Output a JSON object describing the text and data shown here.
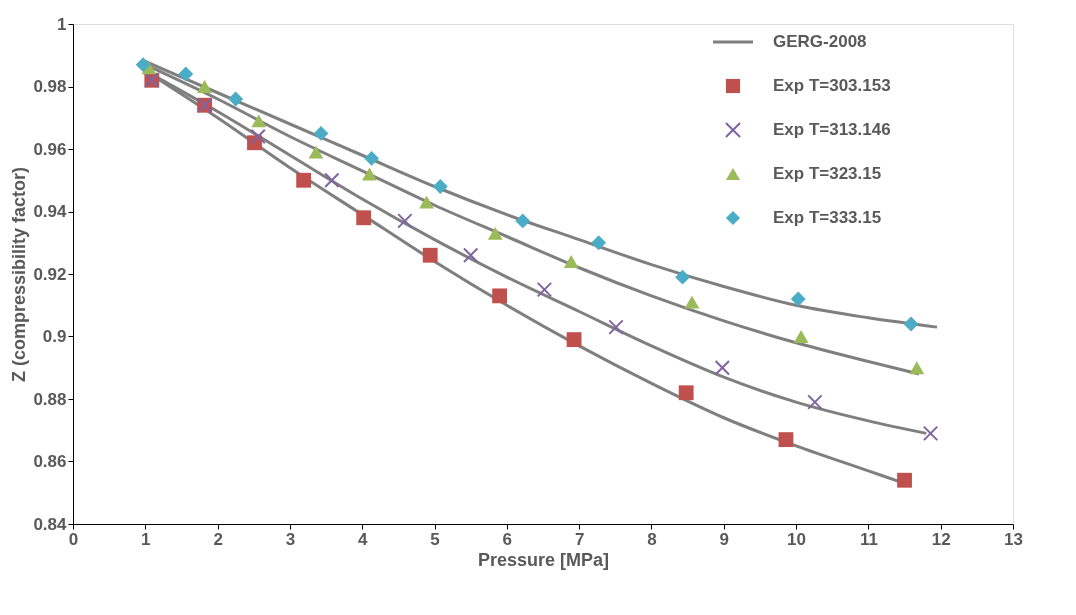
{
  "chart_data": {
    "type": "scatter",
    "xlabel": "Pressure [MPa]",
    "ylabel": "Z (compressibility factor)",
    "xlim": [
      0,
      13
    ],
    "xticks": [
      0,
      1,
      2,
      3,
      4,
      5,
      6,
      7,
      8,
      9,
      10,
      11,
      12,
      13
    ],
    "ylim": [
      0.84,
      1
    ],
    "yticks": [
      0.84,
      0.86,
      0.88,
      0.9,
      0.92,
      0.94,
      0.96,
      0.98,
      1
    ],
    "grid": false,
    "legend": "top right",
    "series": [
      {
        "type": "line",
        "name": "GERG-2008",
        "color": "#7f7f7f",
        "marker": "none",
        "line_style": "solid",
        "x": [
          1,
          2,
          3,
          4,
          5,
          6,
          7,
          8,
          9,
          10,
          11,
          11.5
        ],
        "values": [
          0.985,
          0.97,
          0.954,
          0.939,
          0.924,
          0.91,
          0.897,
          0.885,
          0.874,
          0.865,
          0.857,
          0.853
        ]
      },
      {
        "type": "line",
        "color": "#7f7f7f",
        "marker": "none",
        "line_style": "solid",
        "x": [
          1,
          2,
          3,
          4,
          5,
          6,
          7,
          8,
          9,
          10,
          11,
          11.8
        ],
        "values": [
          0.985,
          0.972,
          0.958,
          0.944,
          0.931,
          0.919,
          0.908,
          0.897,
          0.887,
          0.879,
          0.873,
          0.869
        ]
      },
      {
        "type": "line",
        "color": "#7f7f7f",
        "marker": "none",
        "line_style": "solid",
        "x": [
          1,
          2,
          3,
          4,
          5,
          6,
          7,
          8,
          9,
          10,
          11,
          11.7
        ],
        "values": [
          0.987,
          0.976,
          0.964,
          0.953,
          0.942,
          0.932,
          0.922,
          0.913,
          0.905,
          0.898,
          0.892,
          0.888
        ]
      },
      {
        "type": "line",
        "color": "#7f7f7f",
        "marker": "none",
        "line_style": "solid",
        "x": [
          1,
          2,
          3,
          4,
          5,
          6,
          7,
          8,
          9,
          10,
          11,
          11.95
        ],
        "values": [
          0.988,
          0.978,
          0.968,
          0.958,
          0.948,
          0.939,
          0.931,
          0.923,
          0.916,
          0.91,
          0.906,
          0.903
        ]
      },
      {
        "type": "scatter",
        "name": "Exp T=303.153",
        "color": "#c0504d",
        "marker": "square",
        "x": [
          1.09,
          1.82,
          2.51,
          3.19,
          4.02,
          4.94,
          5.9,
          6.93,
          8.48,
          9.86,
          11.5
        ],
        "values": [
          0.982,
          0.974,
          0.962,
          0.95,
          0.938,
          0.926,
          0.913,
          0.899,
          0.882,
          0.867,
          0.854
        ]
      },
      {
        "type": "scatter",
        "name": "Exp T=313.146",
        "color": "#8064a2",
        "marker": "cross",
        "x": [
          1.09,
          1.82,
          2.56,
          3.58,
          4.59,
          5.5,
          6.52,
          7.51,
          8.98,
          10.26,
          11.86
        ],
        "values": [
          0.982,
          0.974,
          0.964,
          0.95,
          0.937,
          0.926,
          0.915,
          0.903,
          0.89,
          0.879,
          0.869
        ]
      },
      {
        "type": "scatter",
        "name": "Exp T=323.15",
        "color": "#9bbb59",
        "marker": "triangle",
        "x": [
          1.05,
          1.82,
          2.57,
          3.36,
          4.1,
          4.89,
          5.84,
          6.89,
          8.56,
          10.07,
          11.67
        ],
        "values": [
          0.986,
          0.98,
          0.969,
          0.959,
          0.952,
          0.943,
          0.933,
          0.924,
          0.911,
          0.9,
          0.89
        ]
      },
      {
        "type": "scatter",
        "name": "Exp T=333.15",
        "color": "#4bacc6",
        "marker": "diamond",
        "x": [
          0.97,
          1.56,
          2.25,
          3.43,
          4.13,
          5.08,
          6.22,
          7.27,
          8.43,
          10.03,
          11.59
        ],
        "values": [
          0.987,
          0.984,
          0.976,
          0.965,
          0.957,
          0.948,
          0.937,
          0.93,
          0.919,
          0.912,
          0.904
        ]
      }
    ]
  }
}
